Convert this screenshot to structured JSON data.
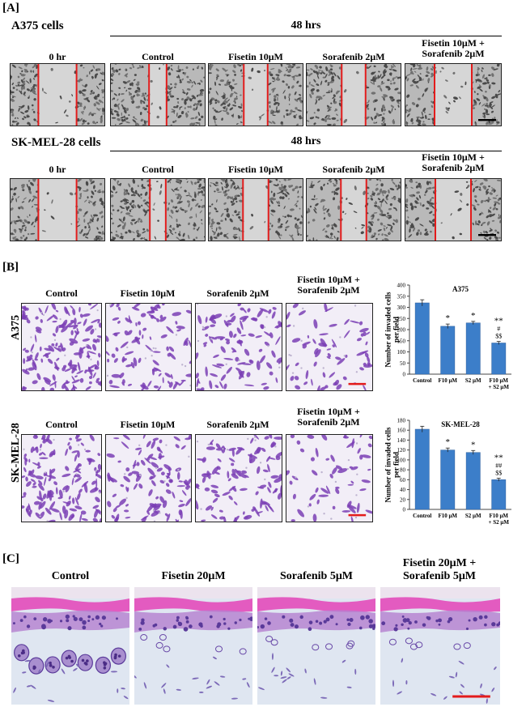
{
  "panelA": {
    "letter": "[A]",
    "rows": [
      {
        "cell_line": "A375 cells",
        "time_header": "48 hrs",
        "labels": [
          "0 hr",
          "Control",
          "Fisetin 10μM",
          "Sorafenib 2μM",
          "Fisetin 10μM +\nSorafenib 2μM"
        ]
      },
      {
        "cell_line": "SK-MEL-28 cells",
        "time_header": "48 hrs",
        "labels": [
          "0 hr",
          "Control",
          "Fisetin 10μM",
          "Sorafenib 2μM",
          "Fisetin 10μM +\nSorafenib 2μM"
        ]
      }
    ]
  },
  "panelB": {
    "letter": "[B]",
    "rows": [
      {
        "cell_line": "A375",
        "labels": [
          "Control",
          "Fisetin 10μM",
          "Sorafenib 2μM",
          "Fisetin 10μM +\nSorafenib 2μM"
        ]
      },
      {
        "cell_line": "SK-MEL-28",
        "labels": [
          "Control",
          "Fisetin 10μM",
          "Sorafenib 2μM",
          "Fisetin 10μM +\nSorafenib 2μM"
        ]
      }
    ]
  },
  "panelC": {
    "letter": "[C]",
    "labels": [
      "Control",
      "Fisetin 20μM",
      "Sorafenib 5μM",
      "Fisetin 20μM +\nSorafenib 5μM"
    ]
  },
  "colors": {
    "red_line": "#e31b1b",
    "bar": "#3c7ec9",
    "stain": "#7b3fb5",
    "scale_bar": "#e31b1b"
  },
  "chart_data": [
    {
      "type": "bar",
      "title": "A375",
      "ylabel": "Number of invaded cells per field",
      "categories": [
        "Control",
        "F10 μM",
        "S2 μM",
        "F10 μM\n+ S2 μM"
      ],
      "values": [
        320,
        215,
        230,
        140
      ],
      "errors": [
        14,
        10,
        7,
        7
      ],
      "annotations": [
        "",
        "*",
        "*",
        "**\n#\n$$"
      ],
      "ylim": [
        0,
        400
      ],
      "yticks": [
        0,
        50,
        100,
        150,
        200,
        250,
        300,
        350,
        400
      ]
    },
    {
      "type": "bar",
      "title": "SK-MEL-28",
      "ylabel": "Number of invaded cells per field",
      "categories": [
        "Control",
        "F10 μM",
        "S2 μM",
        "F10 μM\n+ S2 μM"
      ],
      "values": [
        162,
        120,
        115,
        60
      ],
      "errors": [
        6,
        4,
        4,
        3
      ],
      "annotations": [
        "",
        "*",
        "*",
        "**\n##\n$$"
      ],
      "ylim": [
        0,
        180
      ],
      "yticks": [
        0,
        20,
        40,
        60,
        80,
        100,
        120,
        140,
        160,
        180
      ]
    }
  ]
}
